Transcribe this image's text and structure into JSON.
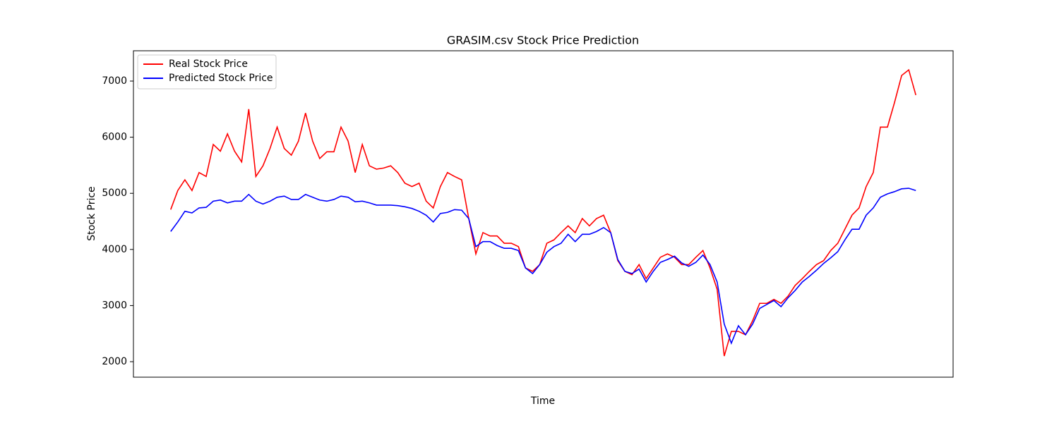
{
  "chart_data": {
    "type": "line",
    "title": "GRASIM.csv Stock Price Prediction",
    "x_label": "Time",
    "y_label": "Stock Price",
    "x": [
      0,
      1,
      2,
      3,
      4,
      5,
      6,
      7,
      8,
      9,
      10,
      11,
      12,
      13,
      14,
      15,
      16,
      17,
      18,
      19,
      20,
      21,
      22,
      23,
      24,
      25,
      26,
      27,
      28,
      29,
      30,
      31,
      32,
      33,
      34,
      35,
      36,
      37,
      38,
      39,
      40,
      41,
      42,
      43,
      44,
      45,
      46,
      47,
      48,
      49,
      50,
      51,
      52,
      53,
      54,
      55,
      56,
      57,
      58,
      59,
      60,
      61,
      62,
      63,
      64,
      65,
      66,
      67,
      68,
      69,
      70,
      71,
      72,
      73,
      74,
      75,
      76,
      77,
      78,
      79,
      80,
      81,
      82,
      83,
      84,
      85,
      86,
      87,
      88,
      89,
      90,
      91,
      92,
      93,
      94,
      95,
      96,
      97,
      98,
      99,
      100,
      101,
      102,
      103,
      104,
      105
    ],
    "xlim": [
      -5.25,
      110.25
    ],
    "ylim": [
      1724,
      7540
    ],
    "yticks": [
      2000,
      3000,
      4000,
      5000,
      6000,
      7000
    ],
    "legend": "upper left",
    "series": [
      {
        "name": "Real Stock Price",
        "color": "#ff0000",
        "values": [
          4710,
          5050,
          5240,
          5050,
          5370,
          5300,
          5870,
          5750,
          6060,
          5750,
          5560,
          6500,
          5300,
          5490,
          5800,
          6180,
          5800,
          5680,
          5930,
          6430,
          5930,
          5620,
          5740,
          5740,
          6180,
          5930,
          5370,
          5870,
          5490,
          5430,
          5450,
          5490,
          5370,
          5180,
          5120,
          5180,
          4860,
          4740,
          5120,
          5370,
          5300,
          5240,
          4550,
          3920,
          4300,
          4240,
          4240,
          4110,
          4110,
          4050,
          3670,
          3610,
          3730,
          4110,
          4170,
          4300,
          4420,
          4300,
          4550,
          4420,
          4550,
          4610,
          4300,
          3800,
          3610,
          3550,
          3730,
          3480,
          3670,
          3860,
          3920,
          3860,
          3730,
          3730,
          3860,
          3980,
          3670,
          3290,
          2100,
          2540,
          2540,
          2480,
          2730,
          3040,
          3040,
          3110,
          3040,
          3170,
          3360,
          3480,
          3610,
          3730,
          3800,
          3980,
          4110,
          4360,
          4610,
          4740,
          5120,
          5370,
          6180,
          6180,
          6620,
          7100,
          7200,
          6750
        ]
      },
      {
        "name": "Predicted Stock Price",
        "color": "#0000ff",
        "values": [
          4320,
          4490,
          4680,
          4650,
          4740,
          4750,
          4860,
          4880,
          4830,
          4860,
          4860,
          4980,
          4860,
          4810,
          4860,
          4930,
          4950,
          4890,
          4890,
          4980,
          4930,
          4880,
          4860,
          4890,
          4950,
          4930,
          4850,
          4860,
          4830,
          4790,
          4790,
          4790,
          4780,
          4760,
          4730,
          4680,
          4610,
          4490,
          4640,
          4660,
          4710,
          4700,
          4550,
          4050,
          4140,
          4140,
          4070,
          4020,
          4020,
          3980,
          3670,
          3570,
          3730,
          3950,
          4050,
          4110,
          4270,
          4140,
          4270,
          4270,
          4320,
          4390,
          4300,
          3820,
          3610,
          3570,
          3650,
          3420,
          3610,
          3770,
          3820,
          3880,
          3760,
          3700,
          3770,
          3900,
          3730,
          3420,
          2670,
          2330,
          2640,
          2480,
          2670,
          2950,
          3020,
          3090,
          2980,
          3140,
          3270,
          3420,
          3520,
          3630,
          3750,
          3850,
          3960,
          4170,
          4360,
          4360,
          4610,
          4740,
          4930,
          4990,
          5030,
          5080,
          5090,
          5050
        ]
      }
    ]
  }
}
